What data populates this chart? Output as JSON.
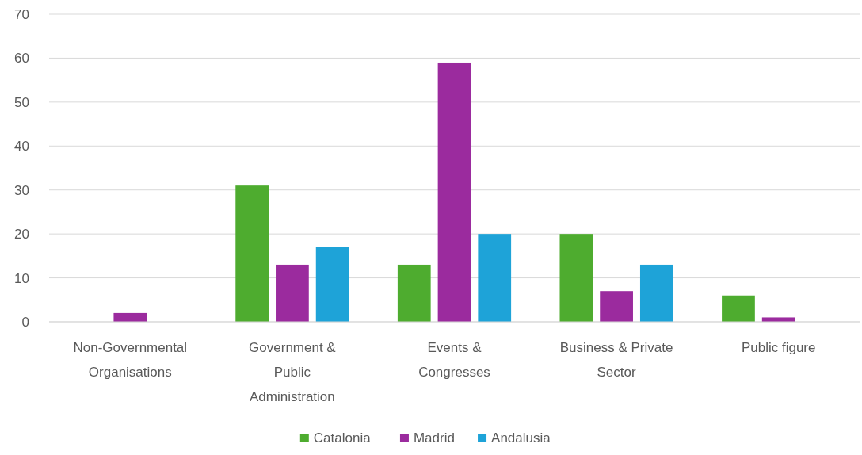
{
  "chart_data": {
    "type": "bar",
    "categories": [
      "Non-Governmental Organisations",
      "Government & Public Administration",
      "Events & Congresses",
      "Business & Private Sector",
      "Public figure"
    ],
    "series": [
      {
        "name": "Catalonia",
        "color": "#4eac2f",
        "values": [
          0,
          31,
          13,
          20,
          6
        ]
      },
      {
        "name": "Madrid",
        "color": "#9b2b9e",
        "values": [
          2,
          13,
          59,
          7,
          1
        ]
      },
      {
        "name": "Andalusia",
        "color": "#1ea3d8",
        "values": [
          0,
          17,
          20,
          13,
          0
        ]
      }
    ],
    "ylim": [
      0,
      70
    ],
    "yticks": [
      0,
      10,
      20,
      30,
      40,
      50,
      60,
      70
    ],
    "grid": "y",
    "legend": "bottom"
  }
}
